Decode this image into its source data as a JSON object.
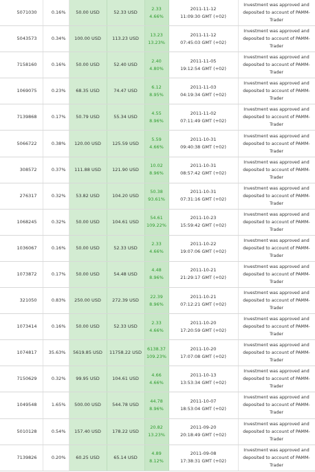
{
  "table": {
    "rows": [
      {
        "id": "5071030",
        "share": "0.16%",
        "invested": "50.00 USD",
        "current": "52.33 USD",
        "profit": "2.33",
        "profit_pct": "4.66%",
        "date": "2011-11-12",
        "time": "11:09:30 GMT (+02)",
        "status": "Investment was approved and deposited to account of PAMM-Trader"
      },
      {
        "id": "5043573",
        "share": "0.34%",
        "invested": "100.00 USD",
        "current": "113.23 USD",
        "profit": "13.23",
        "profit_pct": "13.23%",
        "date": "2011-11-12",
        "time": "07:45:03 GMT (+02)",
        "status": "Investment was approved and deposited to account of PAMM-Trader"
      },
      {
        "id": "7158160",
        "share": "0.16%",
        "invested": "50.00 USD",
        "current": "52.40 USD",
        "profit": "2.40",
        "profit_pct": "4.80%",
        "date": "2011-11-05",
        "time": "19:12:54 GMT (+02)",
        "status": "Investment was approved and deposited to account of PAMM-Trader"
      },
      {
        "id": "1069075",
        "share": "0.23%",
        "invested": "68.35 USD",
        "current": "74.47 USD",
        "profit": "6.12",
        "profit_pct": "8.95%",
        "date": "2011-11-03",
        "time": "04:19:34 GMT (+02)",
        "status": "Investment was approved and deposited to account of PAMM-Trader"
      },
      {
        "id": "7139868",
        "share": "0.17%",
        "invested": "50.79 USD",
        "current": "55.34 USD",
        "profit": "4.55",
        "profit_pct": "8.96%",
        "date": "2011-11-02",
        "time": "07:11:49 GMT (+02)",
        "status": "Investment was approved and deposited to account of PAMM-Trader"
      },
      {
        "id": "5066722",
        "share": "0.38%",
        "invested": "120.00 USD",
        "current": "125.59 USD",
        "profit": "5.59",
        "profit_pct": "4.66%",
        "date": "2011-10-31",
        "time": "09:40:38 GMT (+02)",
        "status": "Investment was approved and deposited to account of PAMM-Trader"
      },
      {
        "id": "308572",
        "share": "0.37%",
        "invested": "111.88 USD",
        "current": "121.90 USD",
        "profit": "10.02",
        "profit_pct": "8.96%",
        "date": "2011-10-31",
        "time": "08:57:42 GMT (+02)",
        "status": "Investment was approved and deposited to account of PAMM-Trader"
      },
      {
        "id": "276317",
        "share": "0.32%",
        "invested": "53.82 USD",
        "current": "104.20 USD",
        "profit": "50.38",
        "profit_pct": "93.61%",
        "date": "2011-10-31",
        "time": "07:31:16 GMT (+02)",
        "status": "Investment was approved and deposited to account of PAMM-Trader"
      },
      {
        "id": "1068245",
        "share": "0.32%",
        "invested": "50.00 USD",
        "current": "104.61 USD",
        "profit": "54.61",
        "profit_pct": "109.22%",
        "date": "2011-10-23",
        "time": "15:59:42 GMT (+02)",
        "status": "Investment was approved and deposited to account of PAMM-Trader"
      },
      {
        "id": "1036067",
        "share": "0.16%",
        "invested": "50.00 USD",
        "current": "52.33 USD",
        "profit": "2.33",
        "profit_pct": "4.66%",
        "date": "2011-10-22",
        "time": "19:07:06 GMT (+02)",
        "status": "Investment was approved and deposited to account of PAMM-Trader"
      },
      {
        "id": "1073872",
        "share": "0.17%",
        "invested": "50.00 USD",
        "current": "54.48 USD",
        "profit": "4.48",
        "profit_pct": "8.96%",
        "date": "2011-10-21",
        "time": "21:29:17 GMT (+02)",
        "status": "Investment was approved and deposited to account of PAMM-Trader"
      },
      {
        "id": "321050",
        "share": "0.83%",
        "invested": "250.00 USD",
        "current": "272.39 USD",
        "profit": "22.39",
        "profit_pct": "8.96%",
        "date": "2011-10-21",
        "time": "07:12:21 GMT (+02)",
        "status": "Investment was approved and deposited to account of PAMM-Trader"
      },
      {
        "id": "1073414",
        "share": "0.16%",
        "invested": "50.00 USD",
        "current": "52.33 USD",
        "profit": "2.33",
        "profit_pct": "4.66%",
        "date": "2011-10-20",
        "time": "17:20:59 GMT (+02)",
        "status": "Investment was approved and deposited to account of PAMM-Trader"
      },
      {
        "id": "1074817",
        "share": "35.63%",
        "invested": "5619.85 USD",
        "current": "11758.22 USD",
        "profit": "6138.37",
        "profit_pct": "109.23%",
        "date": "2011-10-20",
        "time": "17:07:08 GMT (+02)",
        "status": "Investment was approved and deposited to account of PAMM-Trader"
      },
      {
        "id": "7150629",
        "share": "0.32%",
        "invested": "99.95 USD",
        "current": "104.61 USD",
        "profit": "4.66",
        "profit_pct": "4.66%",
        "date": "2011-10-13",
        "time": "13:53:34 GMT (+02)",
        "status": "Investment was approved and deposited to account of PAMM-Trader"
      },
      {
        "id": "1049548",
        "share": "1.65%",
        "invested": "500.00 USD",
        "current": "544.78 USD",
        "profit": "44.78",
        "profit_pct": "8.96%",
        "date": "2011-10-07",
        "time": "18:53:04 GMT (+02)",
        "status": "Investment was approved and deposited to account of PAMM-Trader"
      },
      {
        "id": "5010128",
        "share": "0.54%",
        "invested": "157.40 USD",
        "current": "178.22 USD",
        "profit": "20.82",
        "profit_pct": "13.23%",
        "date": "2011-09-20",
        "time": "20:18:49 GMT (+02)",
        "status": "Investment was approved and deposited to account of PAMM-Trader"
      },
      {
        "id": "7139826",
        "share": "0.20%",
        "invested": "60.25 USD",
        "current": "65.14 USD",
        "profit": "4.89",
        "profit_pct": "8.12%",
        "date": "2011-09-08",
        "time": "17:38:31 GMT (+02)",
        "status": "Investment was approved and deposited to account of PAMM-Trader"
      }
    ]
  }
}
